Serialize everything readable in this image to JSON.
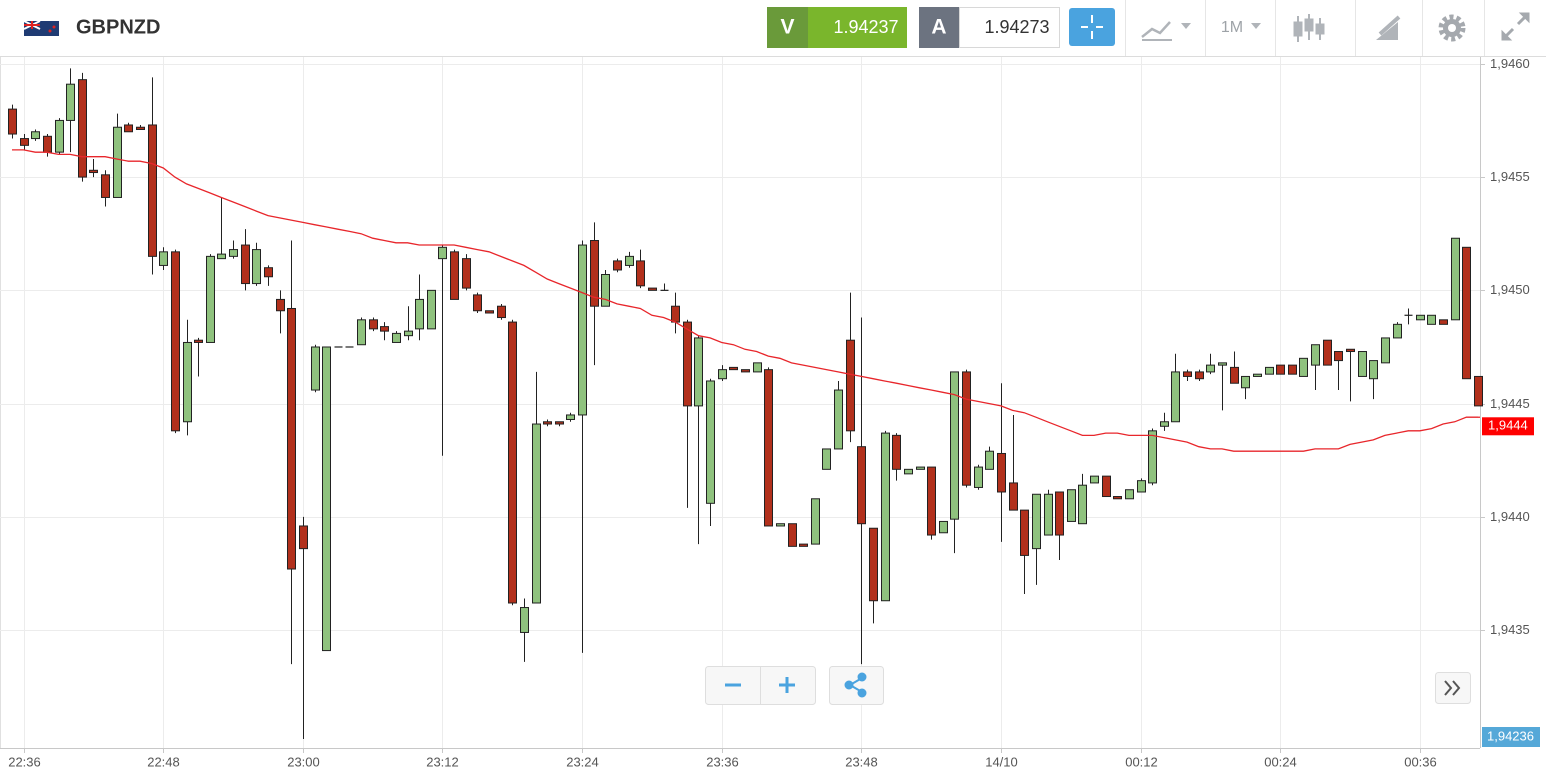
{
  "chart_data": {
    "type": "candlestick",
    "symbol": "GBPNZD",
    "sell_label": "V",
    "sell": 1.94237,
    "buy_label": "A",
    "buy": 1.94273,
    "timeframe": "1M",
    "up_color": "#8fc27e",
    "down_color": "#b2301c",
    "categories": [
      null,
      "22:36",
      null,
      null,
      null,
      null,
      null,
      null,
      null,
      null,
      null,
      null,
      null,
      "22:48",
      null,
      null,
      null,
      null,
      null,
      null,
      null,
      null,
      null,
      null,
      null,
      "23:00",
      null,
      null,
      null,
      null,
      null,
      null,
      null,
      null,
      null,
      null,
      null,
      "23:12",
      null,
      null,
      null,
      null,
      null,
      null,
      null,
      null,
      null,
      null,
      null,
      "23:24",
      null,
      null,
      null,
      null,
      null,
      null,
      null,
      null,
      null,
      null,
      null,
      "23:36",
      null,
      null,
      null,
      null,
      null,
      null,
      null,
      null,
      null,
      null,
      null,
      "23:48",
      null,
      null,
      null,
      null,
      null,
      null,
      null,
      null,
      null,
      null,
      null,
      "14/10",
      null,
      null,
      null,
      null,
      null,
      null,
      null,
      null,
      null,
      null,
      null,
      "00:12",
      null,
      null,
      null,
      null,
      null,
      null,
      null,
      null,
      null,
      null,
      null,
      "00:24",
      null,
      null,
      null,
      null,
      null,
      null,
      null,
      null,
      null,
      null,
      null,
      "00:36",
      null,
      null,
      null,
      null,
      null
    ],
    "open": [
      1.9458,
      1.94567,
      1.94567,
      1.94568,
      1.94561,
      1.94575,
      1.94593,
      1.94553,
      1.94551,
      1.94541,
      1.94573,
      1.94572,
      1.94573,
      1.94511,
      1.94517,
      1.94442,
      1.94478,
      1.94477,
      1.94514,
      1.94515,
      1.9452,
      1.94503,
      1.9451,
      1.94496,
      1.94492,
      1.94396,
      1.94456,
      1.94341,
      1.94475,
      1.94475,
      1.94476,
      1.94487,
      1.94484,
      1.94477,
      1.9448,
      1.94483,
      1.94483,
      1.94514,
      1.94517,
      1.94514,
      1.94498,
      1.94491,
      1.94493,
      1.94486,
      1.94349,
      1.94362,
      1.94442,
      1.94442,
      1.94443,
      1.94445,
      1.94522,
      1.94493,
      1.94513,
      1.94511,
      1.94513,
      1.94501,
      1.945,
      1.94493,
      1.94486,
      1.94449,
      1.94406,
      1.94461,
      1.94466,
      1.94465,
      1.94464,
      1.94465,
      1.94396,
      1.94397,
      1.94388,
      1.94388,
      1.94421,
      1.9443,
      1.94478,
      1.94431,
      1.94395,
      1.94363,
      1.94436,
      1.94419,
      1.94421,
      1.94422,
      1.94393,
      1.94399,
      1.94464,
      1.94413,
      1.94421,
      1.94428,
      1.94415,
      1.94403,
      1.94386,
      1.94392,
      1.94411,
      1.94398,
      1.94397,
      1.94415,
      1.94418,
      1.94409,
      1.94408,
      1.94411,
      1.94415,
      1.9444,
      1.94442,
      1.94464,
      1.94464,
      1.94464,
      1.94467,
      1.94466,
      1.94457,
      1.94462,
      1.94463,
      1.94467,
      1.94467,
      1.94462,
      1.94467,
      1.94478,
      1.94473,
      1.94474,
      1.94462,
      1.94461,
      1.94468,
      1.94479,
      1.94489,
      1.94487,
      1.94485,
      1.94487,
      1.94487,
      1.94519,
      1.94462
    ],
    "high": [
      1.94582,
      1.94569,
      1.94571,
      1.94569,
      1.94576,
      1.94598,
      1.94596,
      1.94558,
      1.94553,
      1.94578,
      1.94574,
      1.94573,
      1.94594,
      1.94519,
      1.94518,
      1.94487,
      1.94479,
      1.94516,
      1.94541,
      1.94522,
      1.94527,
      1.94521,
      1.94511,
      1.945,
      1.94522,
      1.944,
      1.94476,
      1.94475,
      1.94475,
      1.94475,
      1.94488,
      1.94488,
      1.94486,
      1.94482,
      1.94493,
      1.94507,
      1.945,
      1.9452,
      1.94518,
      1.94516,
      1.94499,
      1.94491,
      1.94494,
      1.94487,
      1.94364,
      1.94464,
      1.94443,
      1.94442,
      1.94446,
      1.94522,
      1.9453,
      1.94509,
      1.94514,
      1.94517,
      1.94518,
      1.94501,
      1.94503,
      1.94499,
      1.94487,
      1.9448,
      1.94461,
      1.94467,
      1.94466,
      1.94465,
      1.94468,
      1.94466,
      1.94397,
      1.94397,
      1.94388,
      1.94408,
      1.9443,
      1.9446,
      1.94499,
      1.94488,
      1.94395,
      1.94438,
      1.94437,
      1.94421,
      1.94422,
      1.94422,
      1.94398,
      1.94464,
      1.94465,
      1.94423,
      1.94431,
      1.94459,
      1.94445,
      1.94403,
      1.9441,
      1.94412,
      1.94411,
      1.94412,
      1.94419,
      1.94418,
      1.94418,
      1.94409,
      1.94412,
      1.94417,
      1.94439,
      1.94446,
      1.94472,
      1.94465,
      1.94465,
      1.94472,
      1.94468,
      1.94473,
      1.94462,
      1.94463,
      1.94466,
      1.94467,
      1.94467,
      1.9447,
      1.94476,
      1.94478,
      1.94473,
      1.94474,
      1.94473,
      1.94469,
      1.94479,
      1.94486,
      1.94492,
      1.94489,
      1.94489,
      1.94487,
      1.94523,
      1.94519,
      1.94462
    ],
    "low": [
      1.94567,
      1.94562,
      1.94566,
      1.94559,
      1.9456,
      1.94561,
      1.94548,
      1.9455,
      1.94537,
      1.94541,
      1.9457,
      1.94571,
      1.94507,
      1.94509,
      1.94437,
      1.94436,
      1.94462,
      1.94477,
      1.94514,
      1.94514,
      1.945,
      1.94502,
      1.94502,
      1.94481,
      1.94335,
      1.94302,
      1.94455,
      1.94341,
      1.94475,
      1.94475,
      1.94476,
      1.94482,
      1.94478,
      1.94477,
      1.94478,
      1.94478,
      1.94483,
      1.94427,
      1.94496,
      1.945,
      1.9449,
      1.9449,
      1.94487,
      1.94361,
      1.94336,
      1.94362,
      1.9444,
      1.9444,
      1.94442,
      1.9434,
      1.94467,
      1.94493,
      1.94508,
      1.9451,
      1.94501,
      1.945,
      1.945,
      1.94481,
      1.94404,
      1.94388,
      1.94396,
      1.9446,
      1.94465,
      1.94464,
      1.94464,
      1.94396,
      1.94396,
      1.94387,
      1.94387,
      1.94388,
      1.94421,
      1.9443,
      1.94433,
      1.94335,
      1.94353,
      1.94363,
      1.94416,
      1.94419,
      1.94421,
      1.9439,
      1.94393,
      1.94384,
      1.94413,
      1.94412,
      1.94421,
      1.94389,
      1.94403,
      1.94366,
      1.9437,
      1.94392,
      1.94381,
      1.94398,
      1.94397,
      1.94415,
      1.94409,
      1.94408,
      1.94408,
      1.94411,
      1.94414,
      1.94438,
      1.94442,
      1.9446,
      1.9446,
      1.94463,
      1.94447,
      1.94459,
      1.94452,
      1.94462,
      1.94463,
      1.94463,
      1.94463,
      1.94462,
      1.94456,
      1.94467,
      1.94456,
      1.94451,
      1.94462,
      1.94452,
      1.94468,
      1.94479,
      1.94485,
      1.94487,
      1.94485,
      1.94485,
      1.94487,
      1.94461,
      1.94449
    ],
    "close": [
      1.94569,
      1.94564,
      1.9457,
      1.94561,
      1.94575,
      1.94591,
      1.9455,
      1.94552,
      1.94541,
      1.94572,
      1.9457,
      1.94571,
      1.94515,
      1.94517,
      1.94438,
      1.94477,
      1.94477,
      1.94515,
      1.94516,
      1.94518,
      1.94503,
      1.94518,
      1.94506,
      1.94491,
      1.94377,
      1.94386,
      1.94475,
      1.94475,
      1.94475,
      1.94475,
      1.94487,
      1.94483,
      1.94482,
      1.94481,
      1.94482,
      1.94496,
      1.945,
      1.94519,
      1.94496,
      1.94501,
      1.94491,
      1.9449,
      1.94488,
      1.94362,
      1.9436,
      1.94441,
      1.94441,
      1.94441,
      1.94445,
      1.9452,
      1.94493,
      1.94507,
      1.94509,
      1.94515,
      1.94502,
      1.945,
      1.945,
      1.94486,
      1.94449,
      1.94479,
      1.9446,
      1.94465,
      1.94465,
      1.94464,
      1.94468,
      1.94396,
      1.94397,
      1.94387,
      1.94387,
      1.94408,
      1.9443,
      1.94456,
      1.94438,
      1.94397,
      1.94363,
      1.94437,
      1.94421,
      1.94421,
      1.94422,
      1.94392,
      1.94398,
      1.94464,
      1.94414,
      1.94422,
      1.94429,
      1.94411,
      1.94403,
      1.94383,
      1.9441,
      1.9441,
      1.94392,
      1.94412,
      1.94414,
      1.94418,
      1.94409,
      1.94408,
      1.94412,
      1.94416,
      1.94438,
      1.94442,
      1.94464,
      1.94462,
      1.94461,
      1.94467,
      1.94468,
      1.94459,
      1.94462,
      1.94463,
      1.94466,
      1.94463,
      1.94463,
      1.9447,
      1.94476,
      1.94467,
      1.94469,
      1.94473,
      1.94473,
      1.94469,
      1.94479,
      1.94485,
      1.94489,
      1.94489,
      1.94489,
      1.94485,
      1.94523,
      1.94461,
      1.94449
    ],
    "moving_average": {
      "color": "#e8262b",
      "values": [
        1.94562,
        1.94562,
        1.94561,
        1.94561,
        1.9456,
        1.9456,
        1.94559,
        1.94559,
        1.94559,
        1.94558,
        1.94557,
        1.94557,
        1.94556,
        1.94554,
        1.9455,
        1.94547,
        1.94545,
        1.94543,
        1.94541,
        1.94539,
        1.94537,
        1.94535,
        1.94533,
        1.94532,
        1.94531,
        1.9453,
        1.94529,
        1.94528,
        1.94527,
        1.94526,
        1.94525,
        1.94523,
        1.94522,
        1.94521,
        1.94521,
        1.9452,
        1.9452,
        1.9452,
        1.9452,
        1.94519,
        1.94518,
        1.94517,
        1.94515,
        1.94513,
        1.94511,
        1.94508,
        1.94505,
        1.94503,
        1.94501,
        1.94499,
        1.94497,
        1.94496,
        1.94494,
        1.94493,
        1.94492,
        1.94489,
        1.94488,
        1.94486,
        1.94483,
        1.9448,
        1.94479,
        1.94477,
        1.94476,
        1.94474,
        1.94473,
        1.94471,
        1.9447,
        1.94468,
        1.94467,
        1.94466,
        1.94465,
        1.94464,
        1.94463,
        1.94462,
        1.94461,
        1.9446,
        1.94459,
        1.94458,
        1.94457,
        1.94456,
        1.94455,
        1.94454,
        1.94452,
        1.94451,
        1.9445,
        1.94449,
        1.94447,
        1.94446,
        1.94444,
        1.94442,
        1.9444,
        1.94438,
        1.94436,
        1.94436,
        1.94437,
        1.94437,
        1.94436,
        1.94436,
        1.94436,
        1.94435,
        1.94434,
        1.94433,
        1.94431,
        1.9443,
        1.9443,
        1.94429,
        1.94429,
        1.94429,
        1.94429,
        1.94429,
        1.94429,
        1.94429,
        1.9443,
        1.9443,
        1.9443,
        1.94432,
        1.94433,
        1.94434,
        1.94436,
        1.94437,
        1.94438,
        1.94438,
        1.94439,
        1.94441,
        1.94442,
        1.94444,
        1.94444
      ]
    },
    "ylim": [
      1.94298,
      1.94603
    ],
    "yticks": [
      {
        "value": 1.9435,
        "label": "1,9435"
      },
      {
        "value": 1.944,
        "label": "1,9440"
      },
      {
        "value": 1.9445,
        "label": "1,9445"
      },
      {
        "value": 1.945,
        "label": "1,9450"
      },
      {
        "value": 1.9455,
        "label": "1,9455"
      },
      {
        "value": 1.946,
        "label": "1,9460"
      }
    ],
    "grid": true,
    "average_tag": {
      "value": 1.9444,
      "label": "1,9444",
      "color": "#ff0000"
    },
    "last_price": {
      "value": 1.94236,
      "label": "1,94236",
      "color": "#55a8d8"
    }
  }
}
